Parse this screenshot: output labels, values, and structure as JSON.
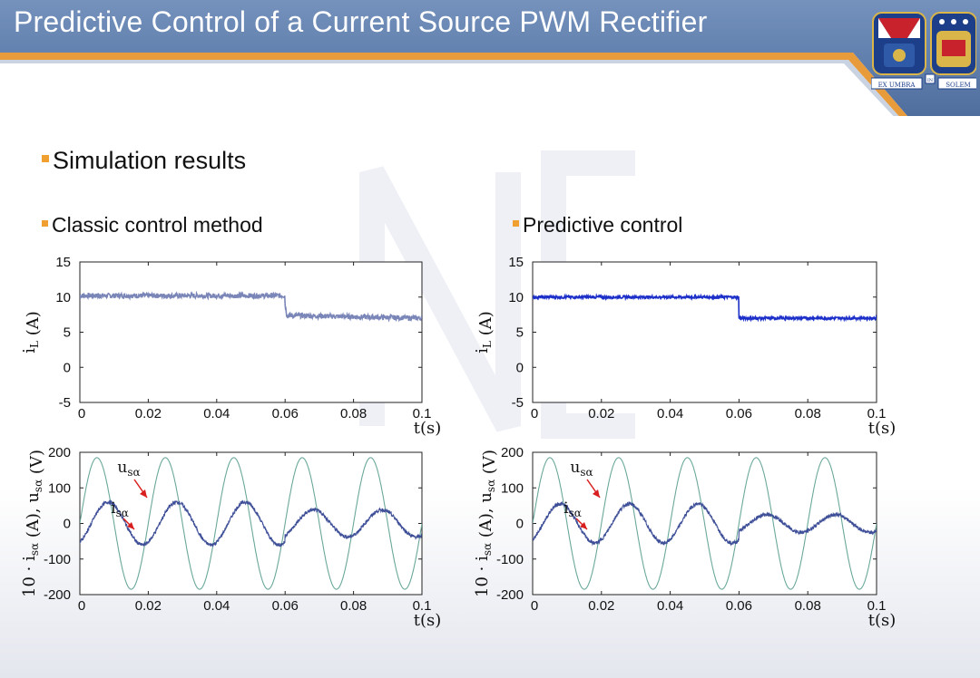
{
  "header": {
    "title": "Predictive Control of a Current Source PWM Rectifier",
    "colors": {
      "bar": "#5e7fae",
      "accent": "#e89b3a"
    }
  },
  "logo": {
    "left_label": "EX UMBRA",
    "middle_label": "IN",
    "right_label": "SOLEM"
  },
  "bullets": {
    "main": "Simulation results",
    "left": "Classic control method",
    "right": "Predictive control"
  },
  "chart_data": [
    {
      "id": "classic-current",
      "type": "line",
      "ylabel": "i_L (A)",
      "xlabel": "t(s)",
      "xlim": [
        0,
        0.1
      ],
      "ylim": [
        -5,
        15
      ],
      "xticks": [
        "0",
        "0.02",
        "0.04",
        "0.06",
        "0.08",
        "0.1"
      ],
      "yticks": [
        "15",
        "10",
        "5",
        "0",
        "-5"
      ],
      "series": [
        {
          "x": [
            0,
            0.06,
            0.06,
            0.0605,
            0.1
          ],
          "values": [
            10.2,
            10.2,
            9,
            7.4,
            7.0
          ],
          "color": "#7b86b8",
          "ripple": 0.35
        }
      ]
    },
    {
      "id": "predictive-current",
      "type": "line",
      "ylabel": "i_L (A)",
      "xlabel": "t(s)",
      "xlim": [
        0,
        0.1
      ],
      "ylim": [
        -5,
        15
      ],
      "xticks": [
        "0",
        "0.02",
        "0.04",
        "0.06",
        "0.08",
        "0.1"
      ],
      "yticks": [
        "15",
        "10",
        "5",
        "0",
        "-5"
      ],
      "series": [
        {
          "x": [
            0,
            0.06,
            0.06,
            0.1
          ],
          "values": [
            10.0,
            10.0,
            7.0,
            7.0
          ],
          "color": "#1c2fc8",
          "ripple": 0.2
        }
      ]
    },
    {
      "id": "classic-ac",
      "type": "line",
      "ylabel": "10 · i_sα (A), u_sα (V)",
      "xlabel": "t(s)",
      "xlim": [
        0,
        0.1
      ],
      "ylim": [
        -200,
        200
      ],
      "xticks": [
        "0",
        "0.02",
        "0.04",
        "0.06",
        "0.08",
        "0.1"
      ],
      "yticks": [
        "200",
        "100",
        "0",
        "-100",
        "-200"
      ],
      "annotations": [
        "u_sα",
        "i_sα"
      ],
      "series": [
        {
          "name": "u_sα",
          "amplitude": 185,
          "freq_hz": 50,
          "phase_deg": 0,
          "color": "#6aa89a"
        },
        {
          "name": "i_sα",
          "amplitude": 60,
          "amplitude_after": 38,
          "switch_t": 0.06,
          "freq_hz": 50,
          "phase_deg": -60,
          "color": "#3e4f98"
        }
      ]
    },
    {
      "id": "predictive-ac",
      "type": "line",
      "ylabel": "10 · i_sα (A), u_sα (V)",
      "xlabel": "t(s)",
      "xlim": [
        0,
        0.1
      ],
      "ylim": [
        -200,
        200
      ],
      "xticks": [
        "0",
        "0.02",
        "0.04",
        "0.06",
        "0.08",
        "0.1"
      ],
      "yticks": [
        "200",
        "100",
        "0",
        "-100",
        "-200"
      ],
      "annotations": [
        "u_sα",
        "i_sα"
      ],
      "series": [
        {
          "name": "u_sα",
          "amplitude": 185,
          "freq_hz": 50,
          "phase_deg": 0,
          "color": "#6aa89a"
        },
        {
          "name": "i_sα",
          "amplitude": 55,
          "amplitude_after": 25,
          "switch_t": 0.06,
          "freq_hz": 50,
          "phase_deg": -55,
          "color": "#3e4f98"
        }
      ]
    }
  ]
}
